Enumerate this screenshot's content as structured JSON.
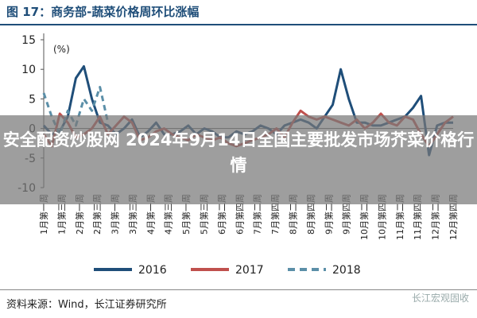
{
  "figure_title": "图 17：商务部-蔬菜价格周环比涨幅",
  "overlay_text": "安全配资炒股网 2024年9月14日全国主要批发市场芥菜价格行情",
  "source": "资料来源：Wind，长江证券研究所",
  "watermark": "长江宏观固收",
  "chart_data": {
    "type": "line",
    "unit_label": "(%)",
    "ylim": [
      -10,
      15
    ],
    "yticks": [
      -10,
      -5,
      0,
      5,
      10,
      15
    ],
    "grid": false,
    "legend_position": "bottom",
    "x_tick_labels": [
      "1月第一周",
      "1月第三周",
      "2月第一周",
      "2月第三周",
      "3月第一周",
      "3月第三周",
      "4月第一周",
      "4月第三周",
      "5月第一周",
      "5月第三周",
      "6月第二周",
      "6月第四周",
      "7月第二周",
      "7月第四周",
      "8月第二周",
      "8月第四周",
      "9月第二周",
      "9月第四周",
      "10月第二周",
      "10月第四周",
      "11月第二周",
      "11月第四周",
      "12月第二周",
      "12月第四周"
    ],
    "series": [
      {
        "name": "2016",
        "color": "#1f4e79",
        "dash": "solid",
        "x": [
          0,
          1,
          2,
          3,
          4,
          5,
          6,
          7,
          8,
          9,
          10,
          11,
          12,
          13,
          14,
          15,
          16,
          17,
          18,
          19,
          20,
          21,
          22,
          23,
          24,
          25,
          26,
          27,
          28,
          29,
          30,
          31,
          32,
          33,
          34,
          35,
          36,
          37,
          38,
          39,
          40,
          41,
          42,
          43,
          44,
          45,
          46,
          47,
          48,
          49,
          50,
          51
        ],
        "y": [
          0.5,
          -1,
          -0.5,
          2,
          8.5,
          10.5,
          5,
          1,
          0.5,
          -1,
          0,
          1.5,
          -1.5,
          -0.5,
          1,
          -1,
          -1,
          -0.5,
          0.5,
          -1,
          0,
          -0.5,
          -1.5,
          -1.5,
          -0.5,
          -1,
          -0.5,
          0.5,
          0,
          -1,
          0.5,
          1,
          1.5,
          1,
          0,
          2,
          4,
          10,
          5,
          1,
          1,
          0.5,
          0.5,
          1,
          1.5,
          2,
          3.5,
          5.5,
          -4.5,
          0.5,
          1,
          1
        ]
      },
      {
        "name": "2017",
        "color": "#c0504d",
        "dash": "solid",
        "x": [
          0,
          1,
          2,
          3,
          4,
          5,
          6,
          7,
          8,
          9,
          10,
          11,
          12,
          13,
          14,
          15,
          16,
          17,
          18,
          19,
          20,
          21,
          22,
          23,
          24,
          25,
          26,
          27,
          28,
          29,
          30,
          31,
          32,
          33,
          34,
          35,
          36,
          37,
          38,
          39,
          40,
          41,
          42,
          43,
          44,
          45,
          46,
          47,
          48,
          49,
          50,
          51
        ],
        "y": [
          -1,
          -3,
          2.5,
          1,
          -1.5,
          -1,
          0,
          2,
          -1,
          0.5,
          2,
          1,
          -2,
          -1.5,
          -0.5,
          0,
          -1,
          -1.5,
          -2,
          -1,
          -1.5,
          -2,
          -1.5,
          -2.5,
          -3,
          -2.5,
          -2,
          -1.5,
          -1,
          0,
          -1.5,
          1,
          3,
          2,
          1.5,
          2,
          1.5,
          1,
          0.5,
          1.5,
          0,
          1,
          2.5,
          1,
          0.5,
          2,
          1.5,
          -1,
          -3,
          -1,
          1,
          2
        ]
      },
      {
        "name": "2018",
        "color": "#5b8fa8",
        "dash": "dashed",
        "x": [
          0,
          1,
          2,
          3,
          4,
          5,
          6,
          7,
          8
        ],
        "y": [
          6,
          2,
          -1,
          3,
          0.5,
          5,
          3,
          7,
          1
        ]
      }
    ]
  }
}
